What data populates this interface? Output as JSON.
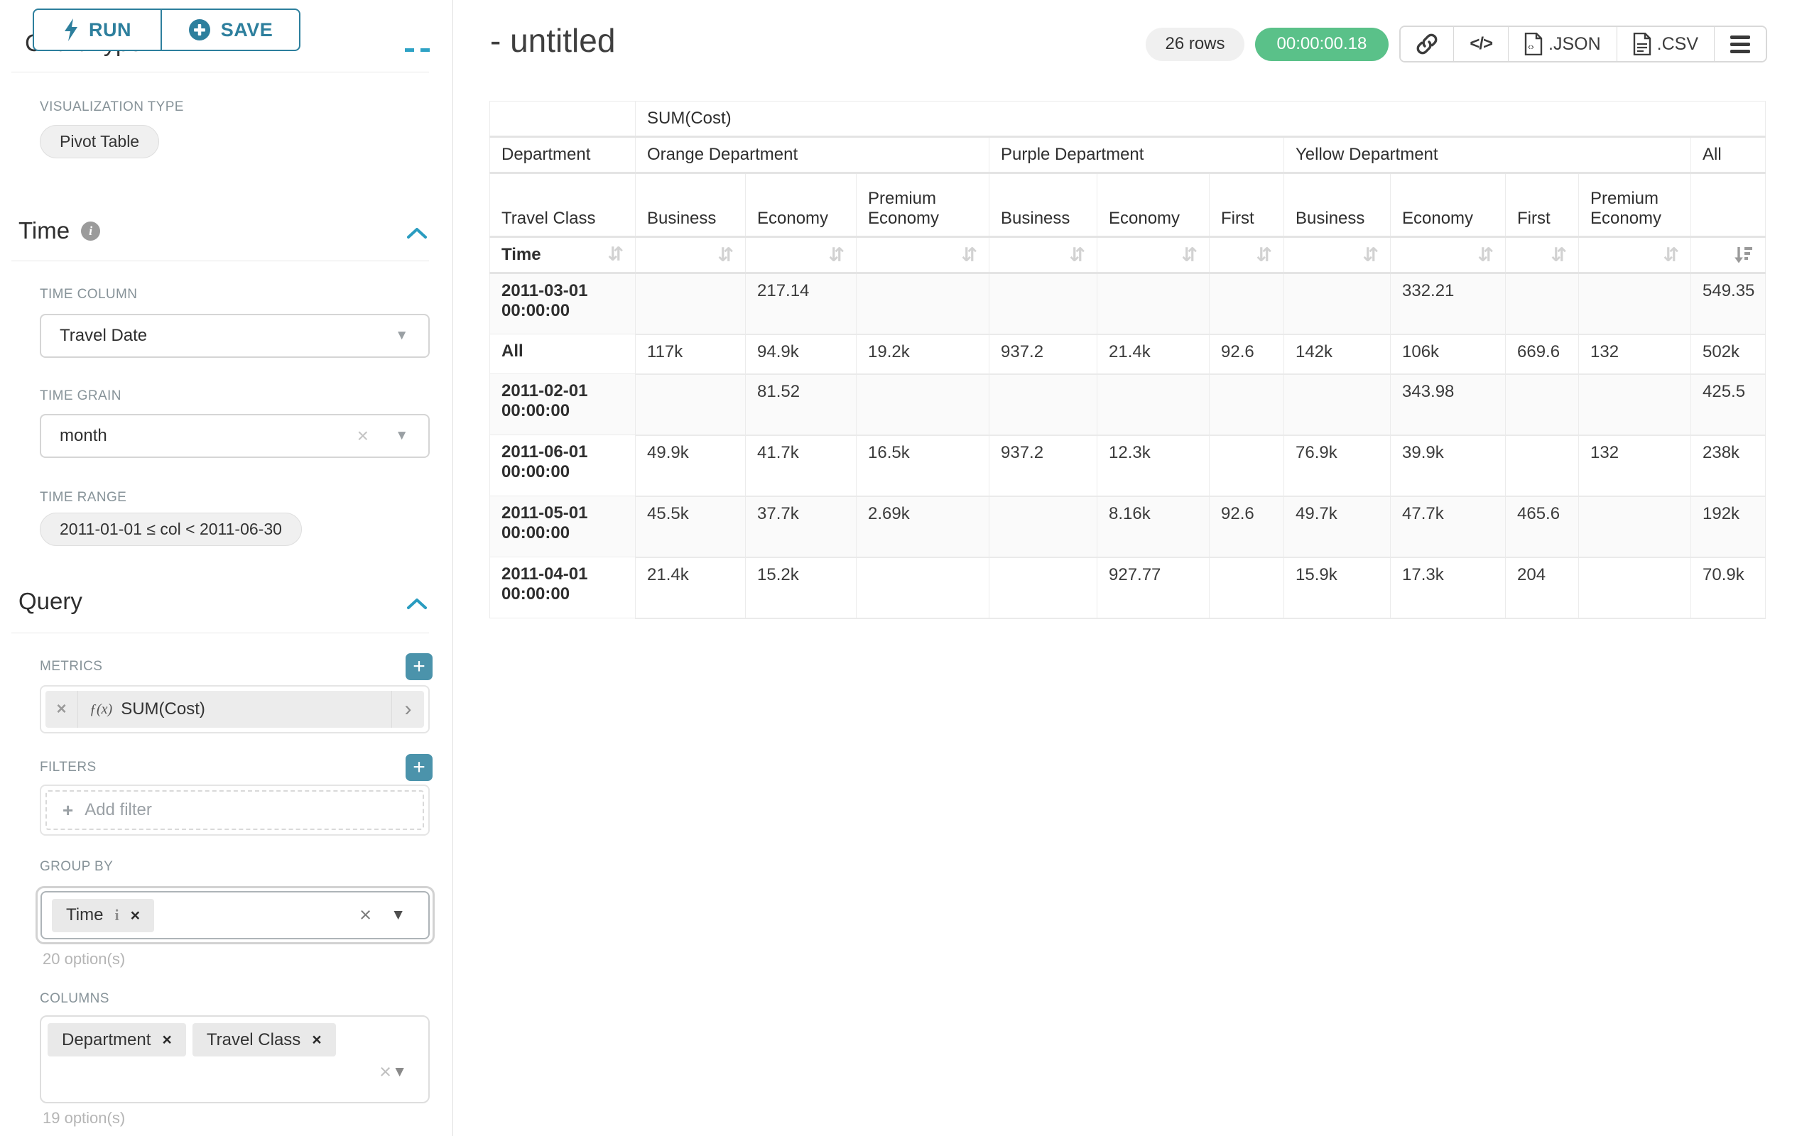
{
  "colors": {
    "accent_teal": "#2d7f9d",
    "add_button_teal": "#4b93ab",
    "timer_green": "#5ac189",
    "label_gray": "#879399",
    "border_gray": "#e0e0e0",
    "pill_gray": "#f0f0f0"
  },
  "sidebar": {
    "run_label": "RUN",
    "save_label": "SAVE",
    "scrolled_heading": "Chart Type",
    "viz": {
      "label": "VISUALIZATION TYPE",
      "value": "Pivot Table"
    },
    "time": {
      "title": "Time",
      "time_column": {
        "label": "TIME COLUMN",
        "value": "Travel Date"
      },
      "time_grain": {
        "label": "TIME GRAIN",
        "value": "month"
      },
      "time_range": {
        "label": "TIME RANGE",
        "value": "2011-01-01 ≤ col < 2011-06-30"
      }
    },
    "query": {
      "title": "Query",
      "metrics": {
        "label": "METRICS",
        "fx_prefix": "ƒ(x)",
        "metric_name": "SUM(Cost)"
      },
      "filters": {
        "label": "FILTERS",
        "placeholder": "Add filter"
      },
      "group_by": {
        "label": "GROUP BY",
        "selected": "Time",
        "options_hint": "20 option(s)"
      },
      "columns": {
        "label": "COLUMNS",
        "selected": [
          "Department",
          "Travel Class"
        ],
        "options_hint": "19 option(s)"
      }
    }
  },
  "header": {
    "title": "- untitled",
    "row_count": "26 rows",
    "query_time": "00:00:00.18",
    "json_label": ".JSON",
    "csv_label": ".CSV"
  },
  "table": {
    "metric_header": "SUM(Cost)",
    "row_dim_label": "Department",
    "col_dim_label": "Travel Class",
    "time_label": "Time",
    "groups": [
      {
        "label": "Orange Department",
        "span": 3
      },
      {
        "label": "Purple Department",
        "span": 3
      },
      {
        "label": "Yellow Department",
        "span": 4
      },
      {
        "label": "All",
        "span": 1
      }
    ],
    "subcolumns": [
      "Business",
      "Economy",
      "Premium Economy",
      "Business",
      "Economy",
      "First",
      "Business",
      "Economy",
      "First",
      "Premium Economy",
      ""
    ],
    "sorted_column_index": 10,
    "rows": [
      {
        "label": "2011-03-01 00:00:00",
        "values": [
          "",
          "217.14",
          "",
          "",
          "",
          "",
          "",
          "332.21",
          "",
          "",
          "549.35"
        ]
      },
      {
        "label": "All",
        "values": [
          "117k",
          "94.9k",
          "19.2k",
          "937.2",
          "21.4k",
          "92.6",
          "142k",
          "106k",
          "669.6",
          "132",
          "502k"
        ]
      },
      {
        "label": "2011-02-01 00:00:00",
        "values": [
          "",
          "81.52",
          "",
          "",
          "",
          "",
          "",
          "343.98",
          "",
          "",
          "425.5"
        ]
      },
      {
        "label": "2011-06-01 00:00:00",
        "values": [
          "49.9k",
          "41.7k",
          "16.5k",
          "937.2",
          "12.3k",
          "",
          "76.9k",
          "39.9k",
          "",
          "132",
          "238k"
        ]
      },
      {
        "label": "2011-05-01 00:00:00",
        "values": [
          "45.5k",
          "37.7k",
          "2.69k",
          "",
          "8.16k",
          "92.6",
          "49.7k",
          "47.7k",
          "465.6",
          "",
          "192k"
        ]
      },
      {
        "label": "2011-04-01 00:00:00",
        "values": [
          "21.4k",
          "15.2k",
          "",
          "",
          "927.77",
          "",
          "15.9k",
          "17.3k",
          "204",
          "",
          "70.9k"
        ]
      }
    ]
  }
}
